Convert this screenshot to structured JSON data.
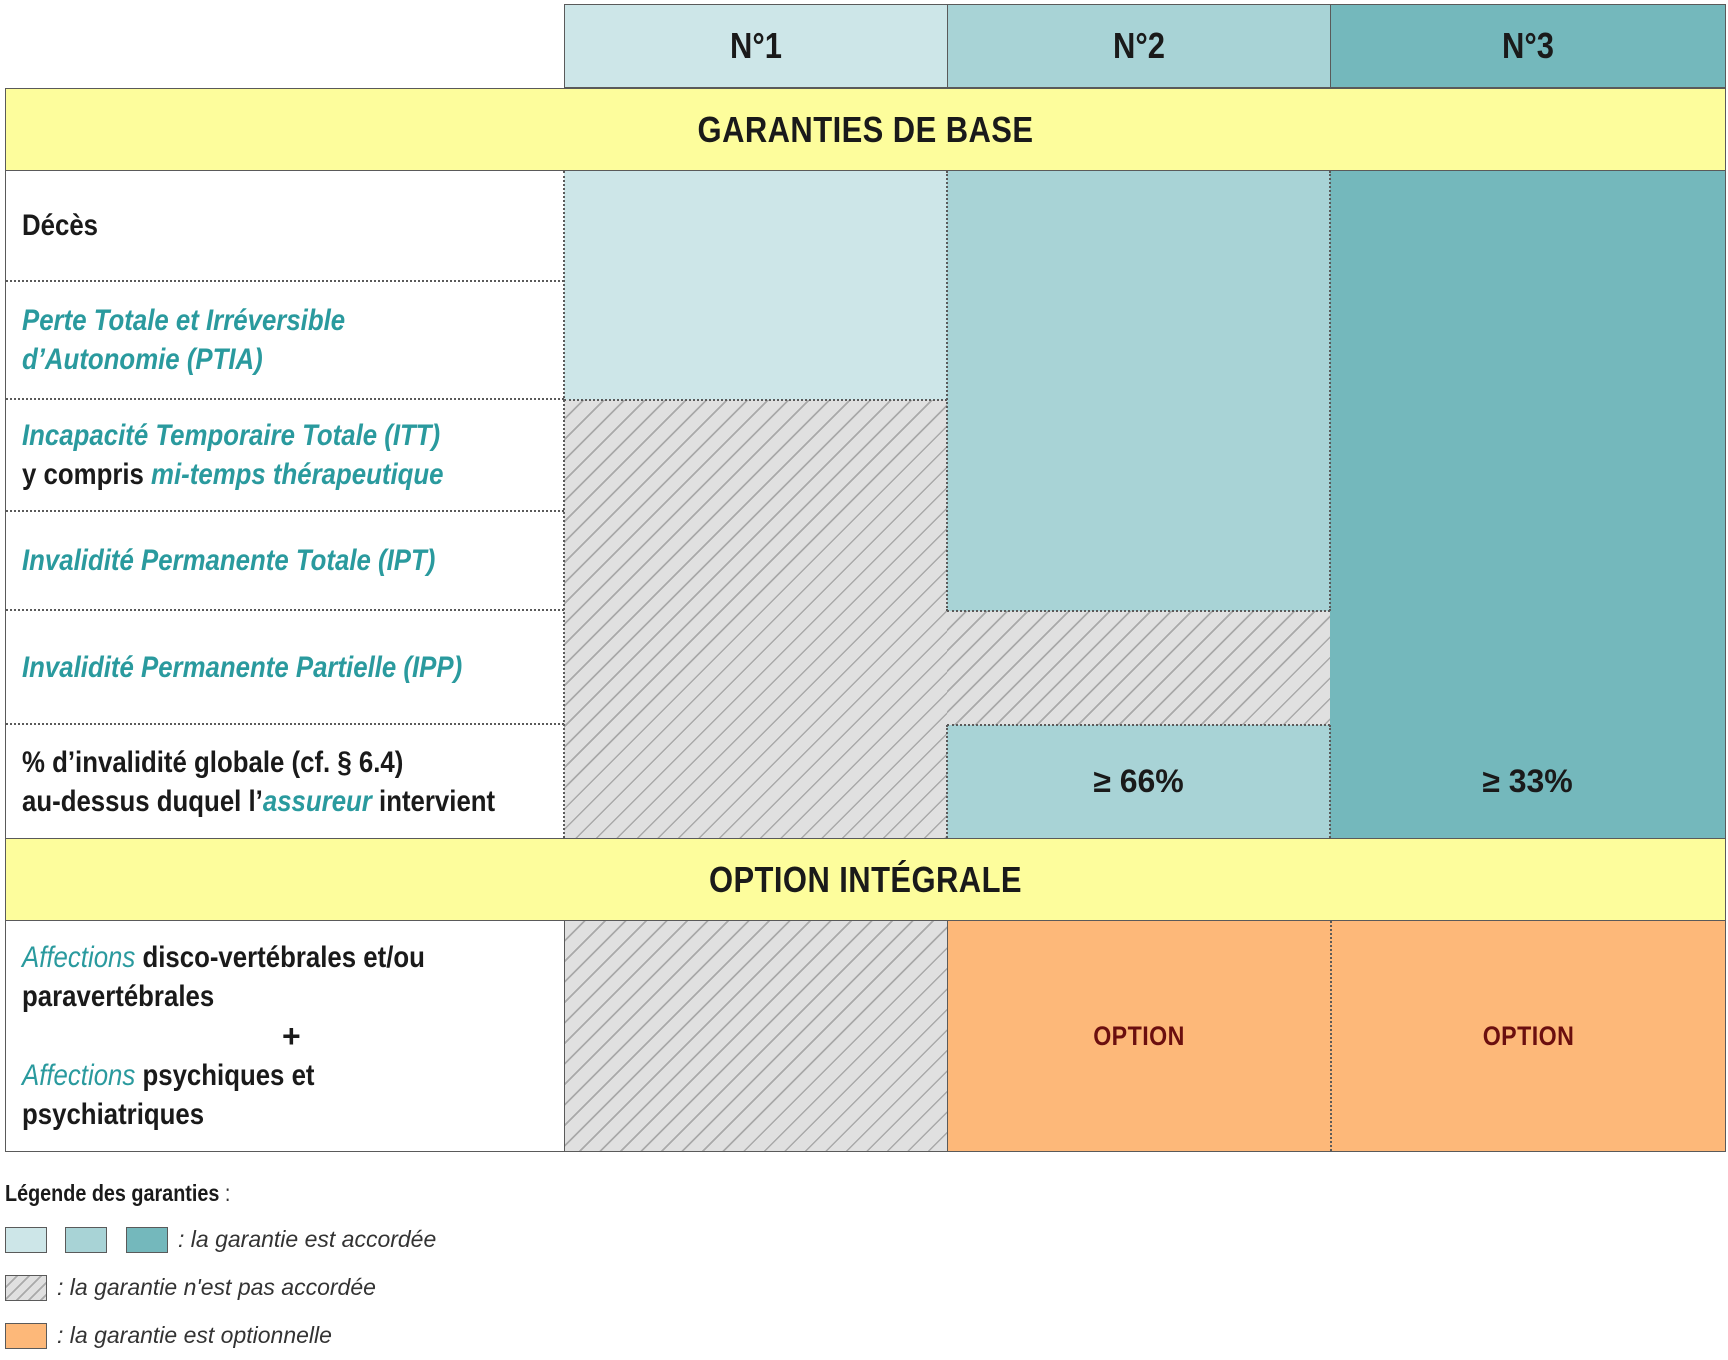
{
  "columns": [
    {
      "label": "N°1",
      "color": "#cde6e8"
    },
    {
      "label": "N°2",
      "color": "#a8d3d6"
    },
    {
      "label": "N°3",
      "color": "#74b8bc"
    }
  ],
  "sections": {
    "base": "GARANTIES DE BASE",
    "integral": "OPTION INTÉGRALE"
  },
  "rows": {
    "deces": "Décès",
    "ptia_line1": "Perte Totale et Irréversible",
    "ptia_line2": "d’Autonomie (PTIA)",
    "itt_line1": "Incapacité Temporaire Totale (ITT)",
    "itt_line2_prefix": "y compris ",
    "itt_line2_em": "mi-temps thérapeutique",
    "ipt": "Invalidité Permanente Totale (IPT)",
    "ipp": "Invalidité Permanente Partielle (IPP)",
    "pct_line1": "% d’invalidité globale (cf. § 6.4)",
    "pct_line2_prefix": "au-dessus duquel l’",
    "pct_line2_em": "assureur",
    "pct_line2_suffix": " intervient",
    "aff1_em": "Affections",
    "aff1_rest": " disco-vertébrales et/ou",
    "aff1_line2": "paravertébrales",
    "plus": "+",
    "aff2_em": "Affections",
    "aff2_rest": " psychiques et",
    "aff2_line2": "psychiatriques"
  },
  "values": {
    "pct_n2": "≥ 66%",
    "pct_n3": "≥ 33%",
    "option_n2": "OPTION",
    "option_n3": "OPTION"
  },
  "legend": {
    "title": "Légende des garanties",
    "title_suffix": " :",
    "granted": ": la garantie est accordée",
    "not_granted": ": la garantie n'est pas accordée",
    "optional": ": la garantie est optionnelle"
  },
  "colors": {
    "section_band": "#fdfd9c",
    "option": "#fdb879",
    "hatch": "#e0e0e0",
    "teal_text": "#2a9a9e"
  }
}
